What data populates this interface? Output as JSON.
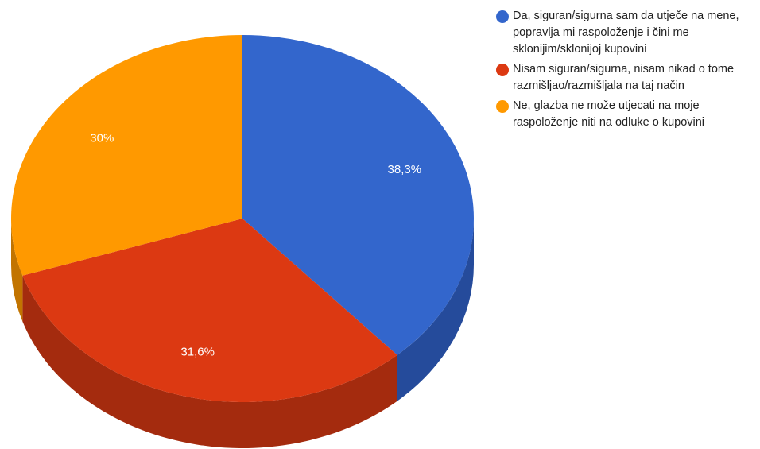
{
  "chart_data": {
    "type": "pie",
    "style": "3d",
    "title": "",
    "categories": [
      "Da, siguran/sigurna sam da utječe na mene, popravlja mi raspoloženje i čini me sklonijim/sklonijoj kupovini",
      "Nisam siguran/sigurna, nisam nikad o tome razmišljao/razmišljala na taj način",
      "Ne, glazba ne može utjecati na moje raspoloženje niti na odluke o kupovini"
    ],
    "values": [
      38.3,
      31.6,
      30
    ],
    "data_labels": [
      "38,3%",
      "31,6%",
      "30%"
    ],
    "colors": [
      "#3366cc",
      "#dc3912",
      "#ff9900"
    ],
    "side_colors": [
      "#254b9b",
      "#a42b0e",
      "#c27400"
    ],
    "legend_position": "right"
  }
}
